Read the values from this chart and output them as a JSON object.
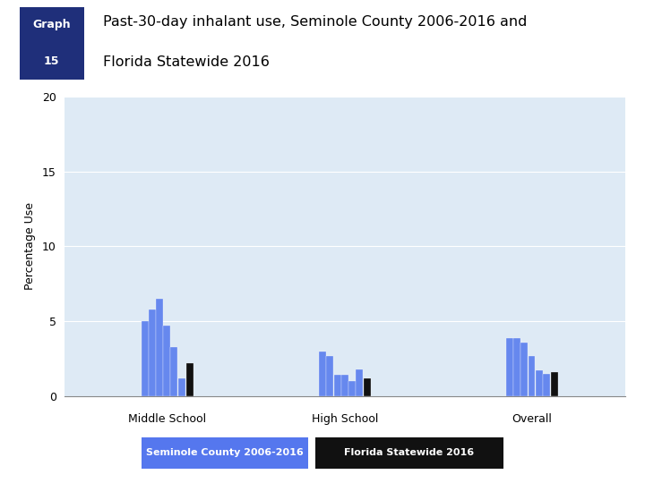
{
  "title_line1": "Past-30-day inhalant use, Seminole County 2006-2016 and",
  "title_line2": "Florida Statewide 2016",
  "graph_label_line1": "Graph",
  "graph_label_line2": "15",
  "ylabel": "Percentage Use",
  "ylim": [
    0,
    20
  ],
  "yticks": [
    0,
    5,
    10,
    15,
    20
  ],
  "groups": [
    "Middle School",
    "High School",
    "Overall"
  ],
  "seminole_bar_color": "#6688ee",
  "florida_bar_color": "#111111",
  "middle_school_seminole": [
    5.0,
    5.8,
    6.5,
    4.7,
    3.3,
    1.2
  ],
  "middle_school_florida": [
    2.2
  ],
  "high_school_seminole": [
    3.0,
    2.7,
    1.4,
    1.4,
    1.0,
    1.8
  ],
  "high_school_florida": [
    1.2
  ],
  "overall_seminole": [
    3.9,
    3.9,
    3.6,
    2.7,
    1.7,
    1.5
  ],
  "overall_florida": [
    1.6
  ],
  "fig_bg_color": "#ffffff",
  "chart_bg_color": "#deeaf5",
  "header_box_color": "#1f2f7a",
  "header_text_color": "#ffffff",
  "title_text_color": "#000000",
  "legend_seminole_label": "Seminole County 2006-2016",
  "legend_florida_label": "Florida Statewide 2016",
  "legend_seminole_bg": "#5577ee",
  "legend_florida_bg": "#111111",
  "legend_text_color": "#ffffff"
}
